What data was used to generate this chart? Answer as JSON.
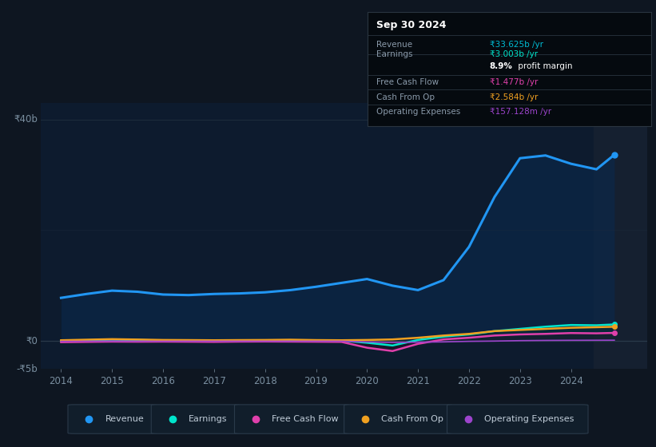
{
  "bg_color": "#0e1621",
  "plot_bg_color": "#0d1b2e",
  "tooltip_bg": "#050a0f",
  "title": "Sep 30 2024",
  "ylim": [
    -5,
    43
  ],
  "xlim": [
    2013.6,
    2025.5
  ],
  "years": [
    2014.0,
    2014.5,
    2015.0,
    2015.5,
    2016.0,
    2016.5,
    2017.0,
    2017.5,
    2018.0,
    2018.5,
    2019.0,
    2019.5,
    2020.0,
    2020.5,
    2021.0,
    2021.5,
    2022.0,
    2022.5,
    2023.0,
    2023.5,
    2024.0,
    2024.5,
    2024.85
  ],
  "revenue": [
    7.8,
    8.5,
    9.1,
    8.9,
    8.4,
    8.3,
    8.5,
    8.6,
    8.8,
    9.2,
    9.8,
    10.5,
    11.2,
    10.0,
    9.2,
    11.0,
    17.0,
    26.0,
    33.0,
    33.5,
    32.0,
    31.0,
    33.625
  ],
  "earnings": [
    0.05,
    0.15,
    0.25,
    0.2,
    0.1,
    0.08,
    0.09,
    0.1,
    0.1,
    0.12,
    0.1,
    0.08,
    -0.3,
    -0.8,
    0.2,
    0.8,
    1.2,
    1.8,
    2.2,
    2.6,
    2.9,
    2.85,
    3.003
  ],
  "free_cash_flow": [
    -0.2,
    -0.15,
    -0.1,
    -0.12,
    -0.1,
    -0.12,
    -0.15,
    -0.1,
    -0.08,
    -0.1,
    -0.12,
    -0.15,
    -1.2,
    -1.8,
    -0.5,
    0.3,
    0.6,
    1.0,
    1.2,
    1.3,
    1.45,
    1.4,
    1.477
  ],
  "cash_from_op": [
    0.15,
    0.25,
    0.35,
    0.28,
    0.2,
    0.18,
    0.15,
    0.18,
    0.2,
    0.25,
    0.18,
    0.15,
    0.2,
    0.3,
    0.6,
    1.0,
    1.3,
    1.8,
    2.0,
    2.2,
    2.4,
    2.5,
    2.584
  ],
  "operating_expenses": [
    -0.05,
    -0.03,
    -0.02,
    -0.03,
    -0.03,
    -0.02,
    -0.02,
    -0.02,
    -0.02,
    -0.03,
    -0.02,
    -0.02,
    -0.15,
    -0.25,
    -0.2,
    -0.15,
    -0.05,
    0.0,
    0.08,
    0.12,
    0.14,
    0.15,
    0.157
  ],
  "revenue_color": "#2196f3",
  "earnings_color": "#00e5cc",
  "free_cash_flow_color": "#e040ab",
  "cash_from_op_color": "#f0a020",
  "operating_expenses_color": "#9c44cc",
  "x_ticks": [
    2014,
    2015,
    2016,
    2017,
    2018,
    2019,
    2020,
    2021,
    2022,
    2023,
    2024
  ],
  "legend_items": [
    {
      "label": "Revenue",
      "color": "#2196f3"
    },
    {
      "label": "Earnings",
      "color": "#00e5cc"
    },
    {
      "label": "Free Cash Flow",
      "color": "#e040ab"
    },
    {
      "label": "Cash From Op",
      "color": "#f0a020"
    },
    {
      "label": "Operating Expenses",
      "color": "#9c44cc"
    }
  ],
  "tooltip_rows": [
    {
      "label": "Revenue",
      "value": "₹33.625b /yr",
      "value_color": "#00bcd4",
      "has_sub": false
    },
    {
      "label": "Earnings",
      "value": "₹3.003b /yr",
      "value_color": "#00e5cc",
      "has_sub": true,
      "sub": "8.9% profit margin"
    },
    {
      "label": "Free Cash Flow",
      "value": "₹1.477b /yr",
      "value_color": "#e040ab",
      "has_sub": false
    },
    {
      "label": "Cash From Op",
      "value": "₹2.584b /yr",
      "value_color": "#f0a020",
      "has_sub": false
    },
    {
      "label": "Operating Expenses",
      "value": "₹157.128m /yr",
      "value_color": "#9c44cc",
      "has_sub": false
    }
  ]
}
